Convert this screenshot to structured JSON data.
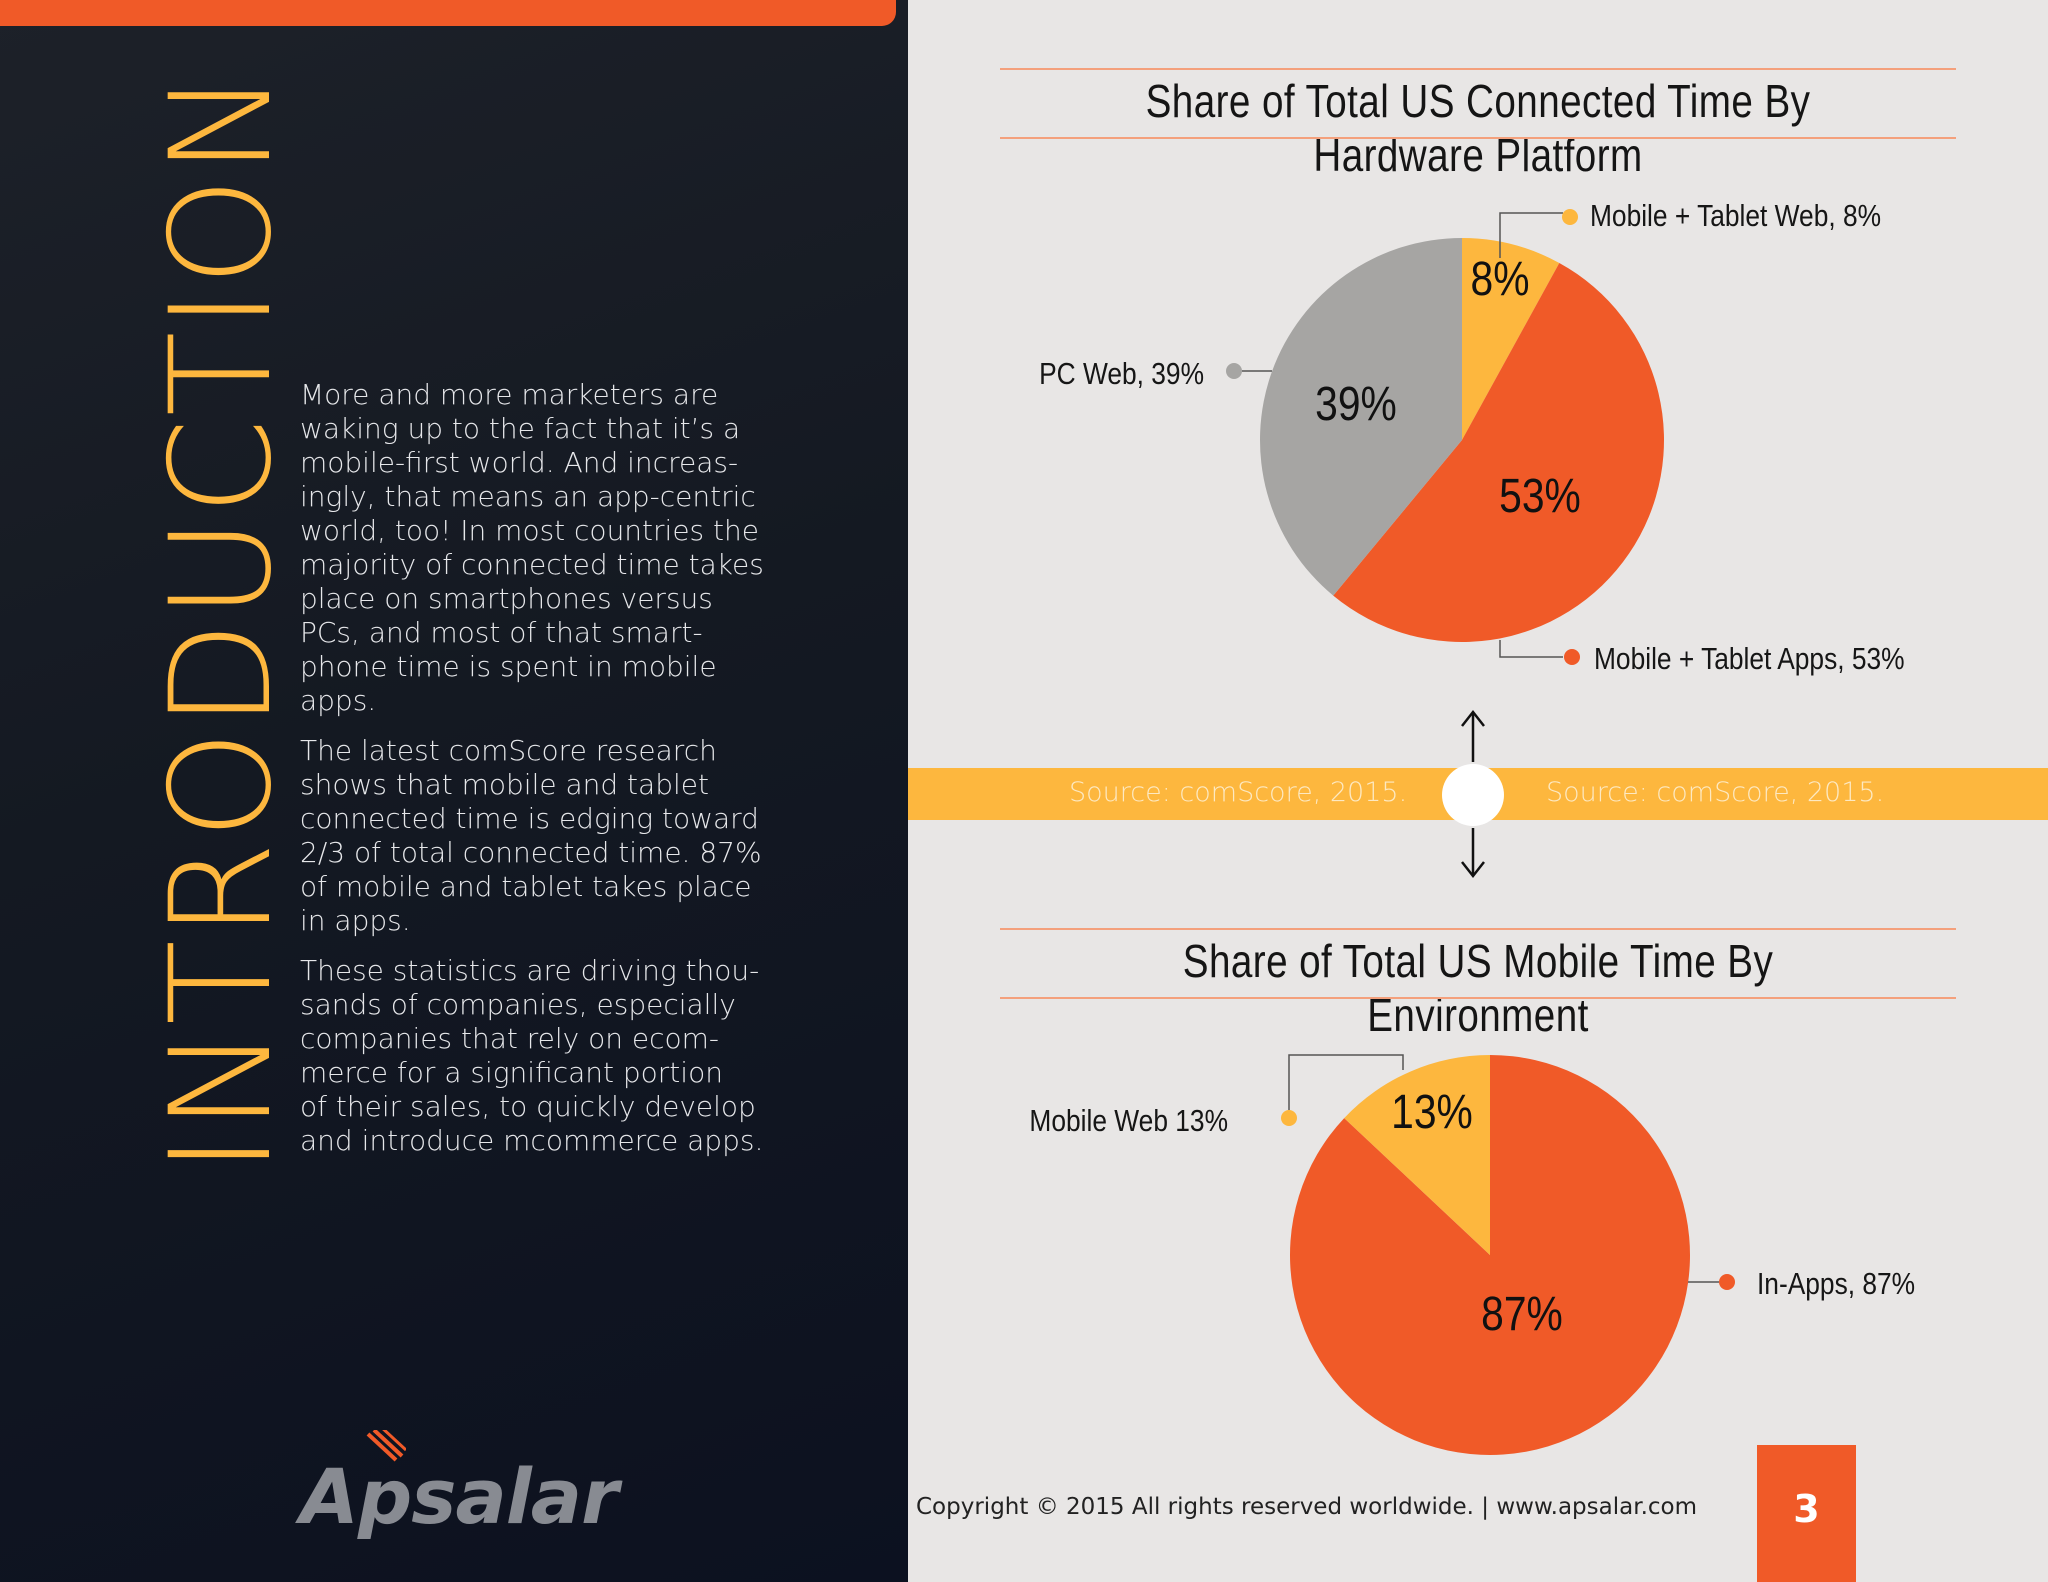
{
  "intro": {
    "heading": "INTRODUCTION",
    "paragraphs": [
      "More and more marketers are\nwaking up to the fact that it’s a\nmobile-first world. And increas-\ningly, that means an app-centric\nworld, too! In most countries the\nmajority of connected time takes\nplace on smartphones versus\nPCs, and most of that smart-\nphone time is spent in mobile\napps.",
      "The latest comScore research\nshows that mobile and tablet\nconnected time is edging toward\n2/3 of total connected time. 87%\nof mobile and tablet takes place\nin apps.",
      "These statistics are driving thou-\nsands of companies, especially\ncompanies that rely on ecom-\nmerce for a significant portion\nof their sales, to quickly develop\nand introduce mcommerce apps."
    ],
    "logo_text": "Apsalar"
  },
  "source": {
    "left": "Source: comScore, 2015.",
    "right": "Source: comScore, 2015."
  },
  "footer": {
    "copyright": "Copyright © 2015 All rights reserved worldwide. | www.apsalar.com",
    "page_number": "3"
  },
  "colors": {
    "orange": "#f05a28",
    "yellow": "#fdb73e",
    "gray": "#a6a5a3"
  },
  "chart_data": [
    {
      "type": "pie",
      "title": "Share of Total US Connected Time By Hardware Platform",
      "slices": [
        {
          "label": "Mobile + Tablet Web, 8%",
          "value": 8,
          "pct_label": "8%",
          "color": "#fdb73e"
        },
        {
          "label": "Mobile + Tablet Apps, 53%",
          "value": 53,
          "pct_label": "53%",
          "color": "#f05a28"
        },
        {
          "label": "PC Web, 39%",
          "value": 39,
          "pct_label": "39%",
          "color": "#a6a5a3"
        }
      ]
    },
    {
      "type": "pie",
      "title": "Share of Total US Mobile Time By Environment",
      "slices": [
        {
          "label": "In-Apps, 87%",
          "value": 87,
          "pct_label": "87%",
          "color": "#f05a28"
        },
        {
          "label": "Mobile Web 13%",
          "value": 13,
          "pct_label": "13%",
          "color": "#fdb73e"
        }
      ]
    }
  ]
}
